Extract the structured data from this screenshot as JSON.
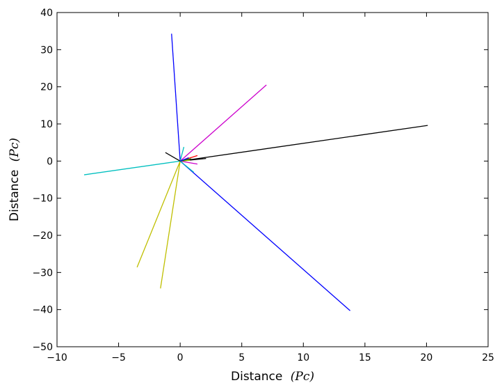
{
  "chart_data": {
    "type": "line",
    "title": "",
    "xlabel": "Distance",
    "xlabel_unit": "(Pc)",
    "ylabel": "Distance",
    "ylabel_unit": "(Pc)",
    "xlim": [
      -10,
      25
    ],
    "ylim": [
      -50,
      40
    ],
    "xticks": [
      -10,
      -5,
      0,
      5,
      10,
      15,
      20,
      25
    ],
    "yticks": [
      -50,
      -40,
      -30,
      -20,
      -10,
      0,
      10,
      20,
      30,
      40
    ],
    "grid": false,
    "legend": "none",
    "series": [
      {
        "color": "#0000ff",
        "points": [
          [
            0,
            0
          ],
          [
            -0.7,
            34.3
          ]
        ]
      },
      {
        "color": "#0000ff",
        "points": [
          [
            0,
            0
          ],
          [
            13.8,
            -40.3
          ]
        ]
      },
      {
        "color": "#cc00cc",
        "points": [
          [
            0,
            0
          ],
          [
            7.0,
            20.5
          ]
        ]
      },
      {
        "color": "#000000",
        "points": [
          [
            0,
            0
          ],
          [
            20.1,
            9.6
          ]
        ]
      },
      {
        "color": "#00bfbf",
        "points": [
          [
            0,
            0
          ],
          [
            -7.8,
            -3.7
          ]
        ]
      },
      {
        "color": "#bfbf00",
        "points": [
          [
            0,
            0
          ],
          [
            -3.5,
            -28.6
          ]
        ]
      },
      {
        "color": "#bfbf00",
        "points": [
          [
            0,
            0
          ],
          [
            -1.6,
            -34.3
          ]
        ]
      },
      {
        "color": "#000000",
        "points": [
          [
            0,
            0
          ],
          [
            -1.2,
            2.3
          ]
        ]
      },
      {
        "color": "#000000",
        "points": [
          [
            0,
            0
          ],
          [
            2.1,
            0.7
          ]
        ]
      },
      {
        "color": "#ff0000",
        "points": [
          [
            0,
            0
          ],
          [
            1.4,
            1.5
          ]
        ]
      },
      {
        "color": "#cc00cc",
        "points": [
          [
            0,
            0
          ],
          [
            1.4,
            -0.8
          ]
        ]
      },
      {
        "color": "#00bfbf",
        "points": [
          [
            0,
            0
          ],
          [
            0.3,
            3.8
          ]
        ]
      },
      {
        "color": "#00bfbf",
        "points": [
          [
            0,
            0
          ],
          [
            1.1,
            -3.0
          ]
        ]
      },
      {
        "color": "#bfbf00",
        "points": [
          [
            0,
            0
          ],
          [
            0.8,
            0.2
          ]
        ]
      },
      {
        "color": "#008000",
        "points": [
          [
            0,
            0
          ],
          [
            0.9,
            0.6
          ]
        ]
      },
      {
        "color": "#0000ff",
        "points": [
          [
            0,
            0
          ],
          [
            0.7,
            0.9
          ]
        ]
      }
    ]
  }
}
